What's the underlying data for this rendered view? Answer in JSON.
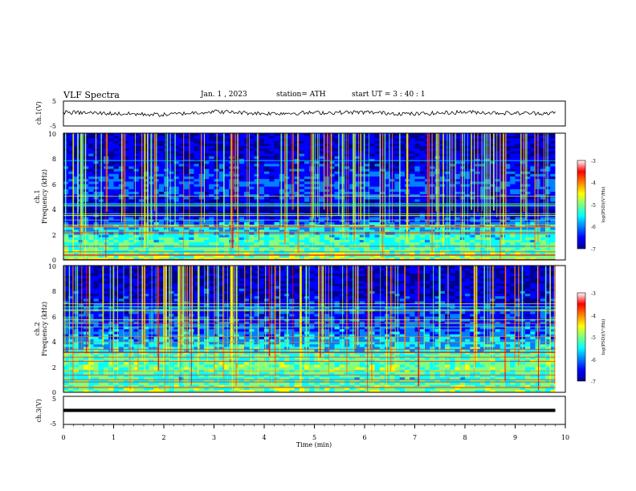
{
  "header": {
    "title": "VLF  Spectra",
    "date": "Jan.  1  , 2023",
    "station": "station= ATH",
    "start": "start  UT  =   3  : 40 : 1"
  },
  "chart_data": [
    {
      "type": "line",
      "panel": "ch1-waveform",
      "ylabel": "ch.1(V)",
      "yticks": [
        "5",
        "-5"
      ],
      "ylim": [
        -5,
        5
      ],
      "x": [
        0.0,
        1.0,
        2.0,
        3.0,
        4.0,
        5.0,
        6.0,
        7.0,
        8.0,
        9.0,
        9.8
      ],
      "y": [
        0.5,
        0.0,
        -0.5,
        0.8,
        0.0,
        0.3,
        0.5,
        -0.2,
        0.6,
        0.1,
        0.2
      ]
    },
    {
      "type": "heatmap",
      "panel": "ch1-spectrogram",
      "ylabel": "Frequency  (kHz)",
      "channel_label": "ch.1",
      "yticks": [
        "0",
        "2",
        "4",
        "6",
        "8",
        "10"
      ],
      "ylim": [
        0,
        10
      ],
      "xlim": [
        0,
        9.8
      ],
      "colorbar": {
        "label": "log(PSD)(V²/Hz)",
        "ticks": [
          "-3",
          "-4",
          "-5",
          "-6",
          "-7"
        ],
        "range": [
          -7,
          -3
        ]
      },
      "freq_profile_khz": [
        0,
        1,
        2,
        3,
        4,
        5,
        6,
        7,
        8,
        9,
        10
      ],
      "log_psd_profile": [
        -4.6,
        -5.0,
        -5.2,
        -5.9,
        -6.9,
        -6.1,
        -6.0,
        -6.2,
        -6.4,
        -6.5,
        -6.5
      ]
    },
    {
      "type": "heatmap",
      "panel": "ch2-spectrogram",
      "ylabel": "Frequency  (kHz)",
      "channel_label": "ch.2",
      "yticks": [
        "0",
        "2",
        "4",
        "6",
        "8",
        "10"
      ],
      "ylim": [
        0,
        10
      ],
      "xlim": [
        0,
        9.8
      ],
      "colorbar": {
        "label": "log(PSD)(V²/Hz)",
        "ticks": [
          "-3",
          "-4",
          "-5",
          "-6",
          "-7"
        ],
        "range": [
          -7,
          -3
        ]
      },
      "freq_profile_khz": [
        0,
        1,
        2,
        3,
        4,
        5,
        6,
        7,
        8,
        9,
        10
      ],
      "log_psd_profile": [
        -4.7,
        -5.1,
        -4.8,
        -5.0,
        -5.6,
        -5.9,
        -6.1,
        -6.3,
        -6.4,
        -6.5,
        -6.5
      ]
    },
    {
      "type": "line",
      "panel": "ch3-waveform",
      "ylabel": "ch.3(V)",
      "yticks": [
        "5",
        "-5"
      ],
      "ylim": [
        -5,
        5
      ],
      "x": [
        0.0,
        9.8
      ],
      "y": [
        0.0,
        0.0
      ]
    }
  ],
  "x_axis": {
    "label": "Time  (min)",
    "ticks": [
      "0",
      "1",
      "2",
      "3",
      "4",
      "5",
      "6",
      "7",
      "8",
      "9",
      "10"
    ],
    "range": [
      0,
      10
    ]
  },
  "colors": {
    "jet": [
      "#00008f",
      "#0000ff",
      "#0080ff",
      "#00ffff",
      "#80ff80",
      "#ffff00",
      "#ff8000",
      "#ff0000",
      "#ffffff"
    ]
  }
}
